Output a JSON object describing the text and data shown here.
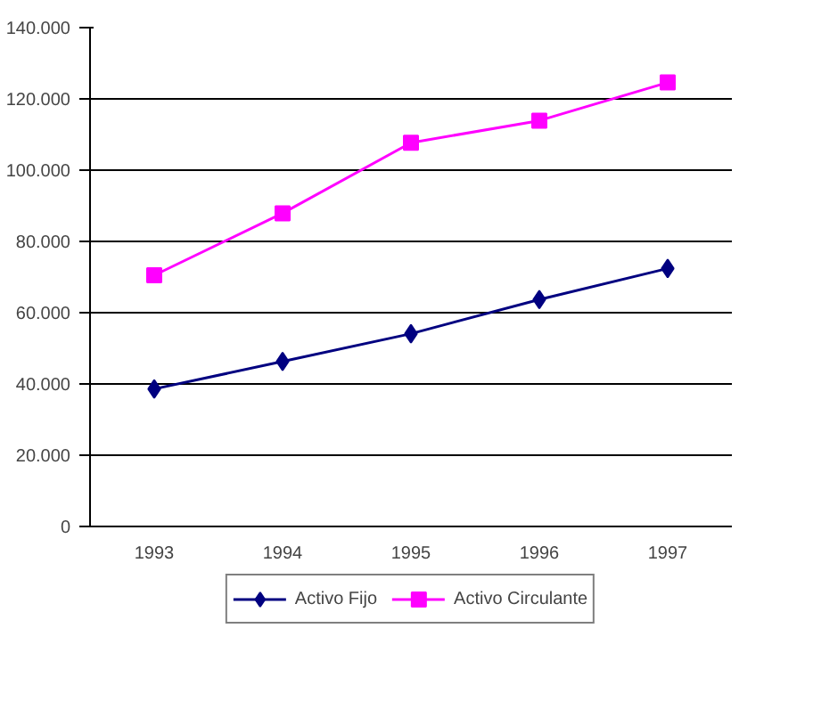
{
  "chart_data": {
    "type": "line",
    "categories": [
      "1993",
      "1994",
      "1995",
      "1996",
      "1997"
    ],
    "series": [
      {
        "name": "Activo Fijo",
        "color": "#000080",
        "marker": "diamond",
        "values": [
          38600,
          46300,
          54100,
          63700,
          72400
        ]
      },
      {
        "name": "Activo Circulante",
        "color": "#ff00ff",
        "marker": "square",
        "values": [
          70500,
          87900,
          107700,
          113900,
          124600
        ]
      }
    ],
    "ylim": [
      0,
      140000
    ],
    "yticks": [
      {
        "value": 0,
        "label": "0"
      },
      {
        "value": 20000,
        "label": "20.000"
      },
      {
        "value": 40000,
        "label": "40.000"
      },
      {
        "value": 60000,
        "label": "60.000"
      },
      {
        "value": 80000,
        "label": "80.000"
      },
      {
        "value": 100000,
        "label": "100.000"
      },
      {
        "value": 120000,
        "label": "120.000"
      },
      {
        "value": 140000,
        "label": "140.000"
      }
    ],
    "grid": "y",
    "legend": "bottom"
  }
}
